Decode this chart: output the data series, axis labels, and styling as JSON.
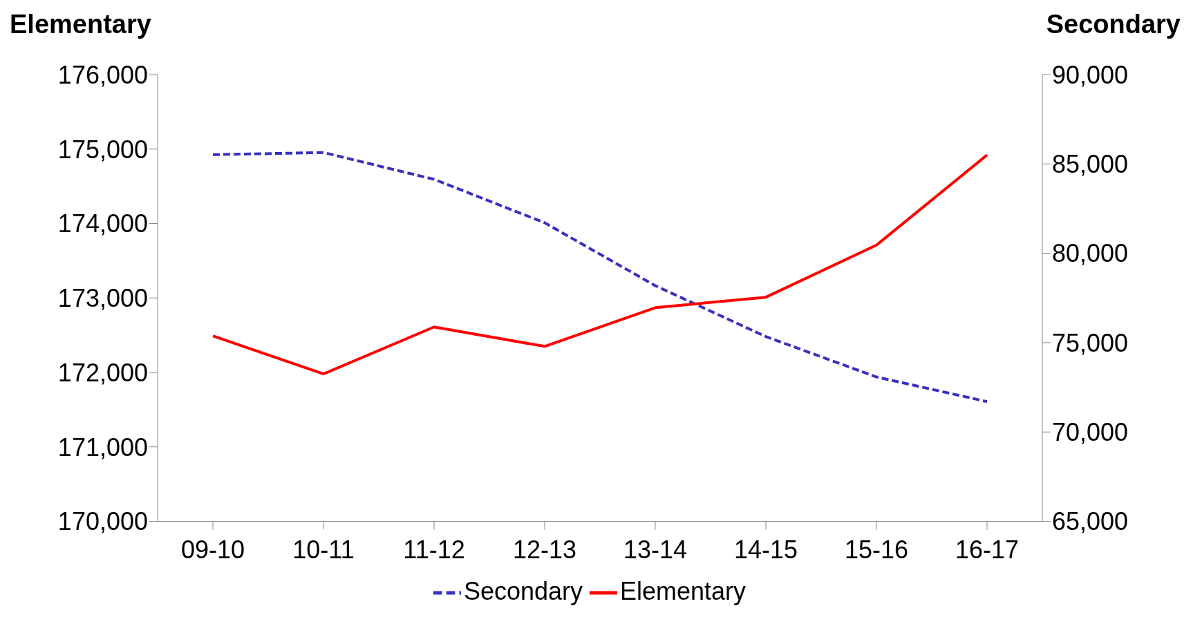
{
  "chart_data": {
    "type": "line",
    "ylabel": "Elementary",
    "y2label": "Secondary",
    "categories": [
      "09-10",
      "10-11",
      "11-12",
      "12-13",
      "13-14",
      "14-15",
      "15-16",
      "16-17"
    ],
    "series": [
      {
        "name": "Secondary",
        "color": "#3a2fc0",
        "axis": "y2",
        "line_style": "dashed",
        "values": [
          85520,
          85640,
          84140,
          81710,
          78190,
          75340,
          73080,
          71700
        ]
      },
      {
        "name": "Elementary",
        "color": "#ff0000",
        "line_style": "solid",
        "values": [
          172490,
          171980,
          172610,
          172350,
          172870,
          173010,
          173710,
          174920
        ]
      }
    ],
    "ylim": [
      170000,
      176000
    ],
    "yticks": [
      {
        "value": 170000,
        "label": "170,000"
      },
      {
        "value": 171000,
        "label": "171,000"
      },
      {
        "value": 172000,
        "label": "172,000"
      },
      {
        "value": 173000,
        "label": "173,000"
      },
      {
        "value": 174000,
        "label": "174,000"
      },
      {
        "value": 175000,
        "label": "175,000"
      },
      {
        "value": 176000,
        "label": "176,000"
      }
    ],
    "y2lim": [
      65000,
      90000
    ],
    "y2ticks": [
      {
        "value": 65000,
        "label": "65,000"
      },
      {
        "value": 70000,
        "label": "70,000"
      },
      {
        "value": 75000,
        "label": "75,000"
      },
      {
        "value": 80000,
        "label": "80,000"
      },
      {
        "value": 85000,
        "label": "85,000"
      },
      {
        "value": 90000,
        "label": "90,000"
      }
    ],
    "grid": false,
    "legend": "bottom",
    "marker": "none"
  }
}
